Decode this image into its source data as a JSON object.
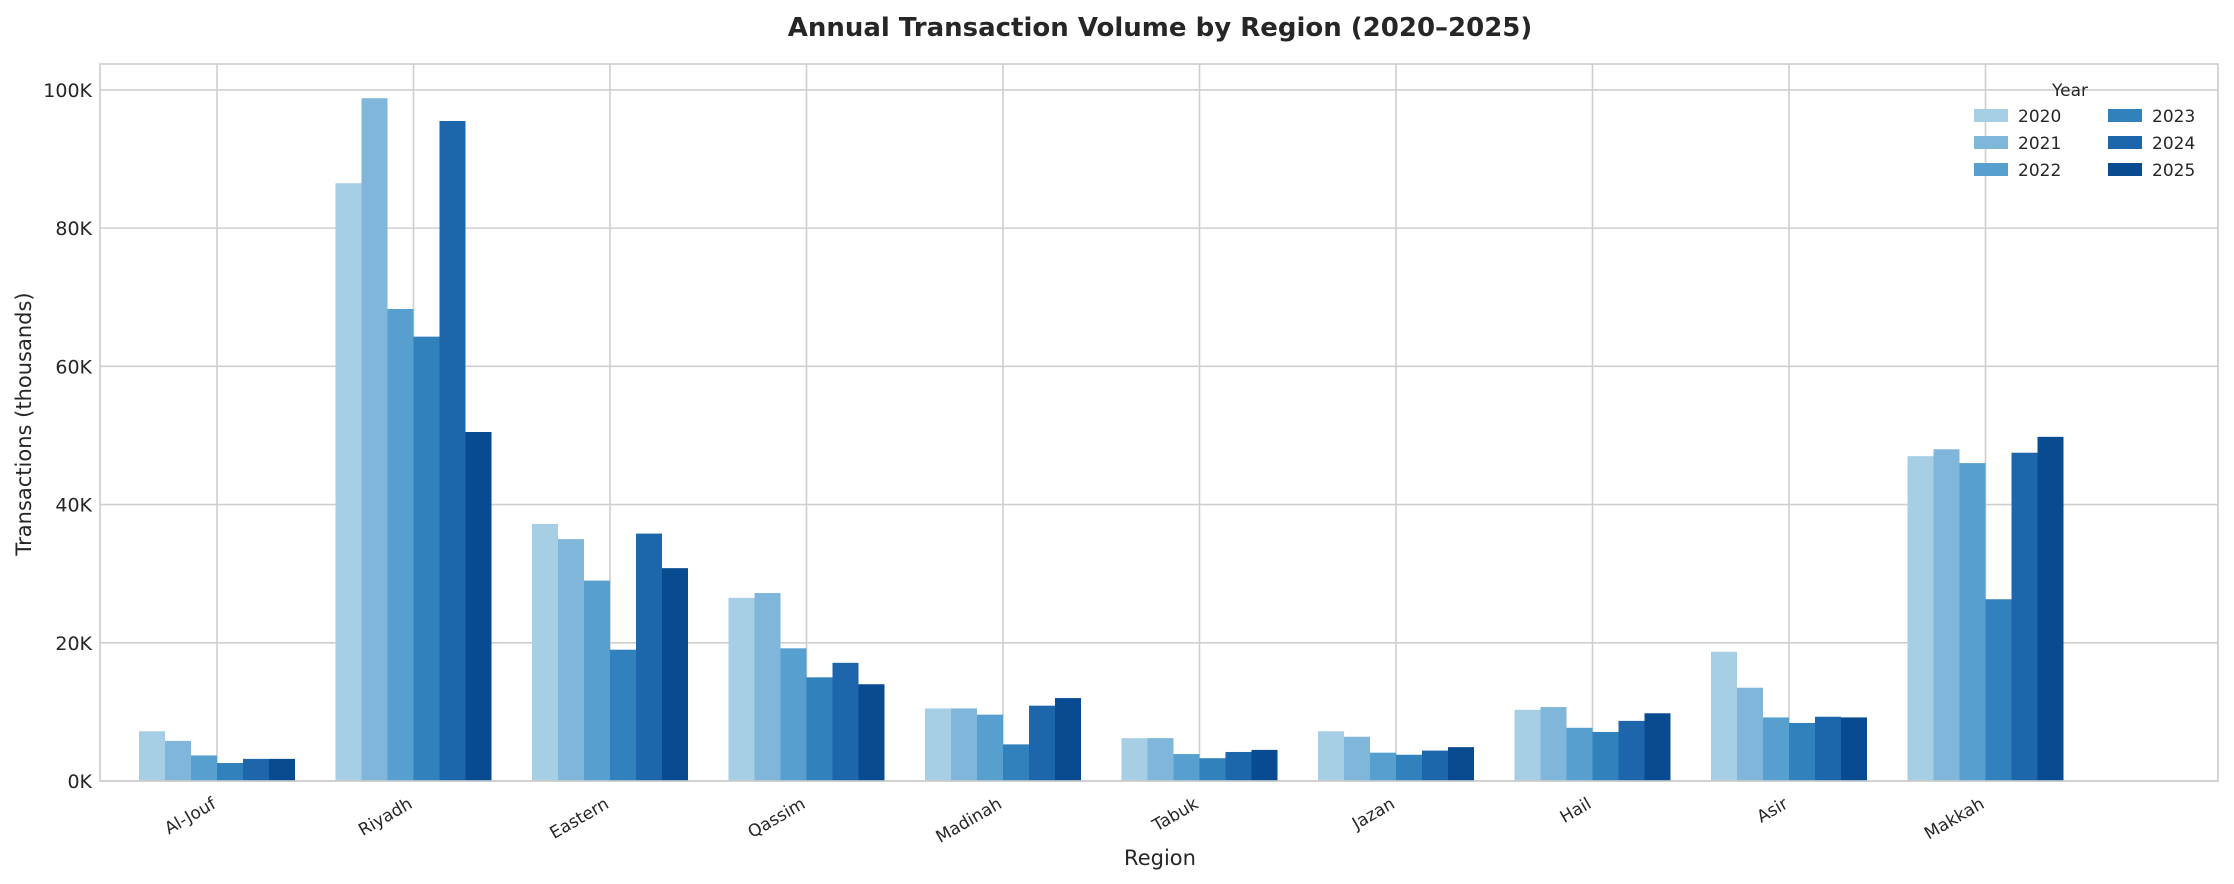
{
  "chart_data": {
    "type": "bar",
    "title": "Annual Transaction Volume by Region (2020–2025)",
    "xlabel": "Region",
    "ylabel": "Transactions (thousands)",
    "ylim": [
      0,
      103750
    ],
    "yticks": [
      0,
      20000,
      40000,
      60000,
      80000,
      100000
    ],
    "ytick_labels": [
      "0K",
      "20K",
      "40K",
      "60K",
      "80K",
      "100K"
    ],
    "grid": true,
    "legend": {
      "title": "Year",
      "placement": "top-right",
      "columns": 2
    },
    "categories": [
      "Al-Jouf",
      "Riyadh",
      "Eastern",
      "Qassim",
      "Madinah",
      "Tabuk",
      "Jazan",
      "Hail",
      "Asir",
      "Makkah"
    ],
    "series": [
      {
        "name": "2020",
        "color": "#a6cee4",
        "values": [
          7200,
          86500,
          37200,
          26500,
          10500,
          6200,
          7200,
          10300,
          18700,
          47000
        ]
      },
      {
        "name": "2021",
        "color": "#7fb6d9",
        "values": [
          5800,
          98800,
          35000,
          27200,
          10500,
          6200,
          6400,
          10700,
          13500,
          48000
        ]
      },
      {
        "name": "2022",
        "color": "#569fcf",
        "values": [
          3700,
          68300,
          29000,
          19200,
          9600,
          3900,
          4100,
          7700,
          9200,
          46000
        ]
      },
      {
        "name": "2023",
        "color": "#3181bd",
        "values": [
          2600,
          64300,
          19000,
          15000,
          5300,
          3300,
          3800,
          7100,
          8400,
          26300
        ]
      },
      {
        "name": "2024",
        "color": "#1d66ab",
        "values": [
          3200,
          95500,
          35800,
          17100,
          10900,
          4200,
          4400,
          8700,
          9300,
          47500
        ]
      },
      {
        "name": "2025",
        "color": "#094b91",
        "values": [
          3200,
          50500,
          30800,
          14000,
          12000,
          4500,
          4900,
          9800,
          9200,
          49800
        ]
      }
    ]
  }
}
